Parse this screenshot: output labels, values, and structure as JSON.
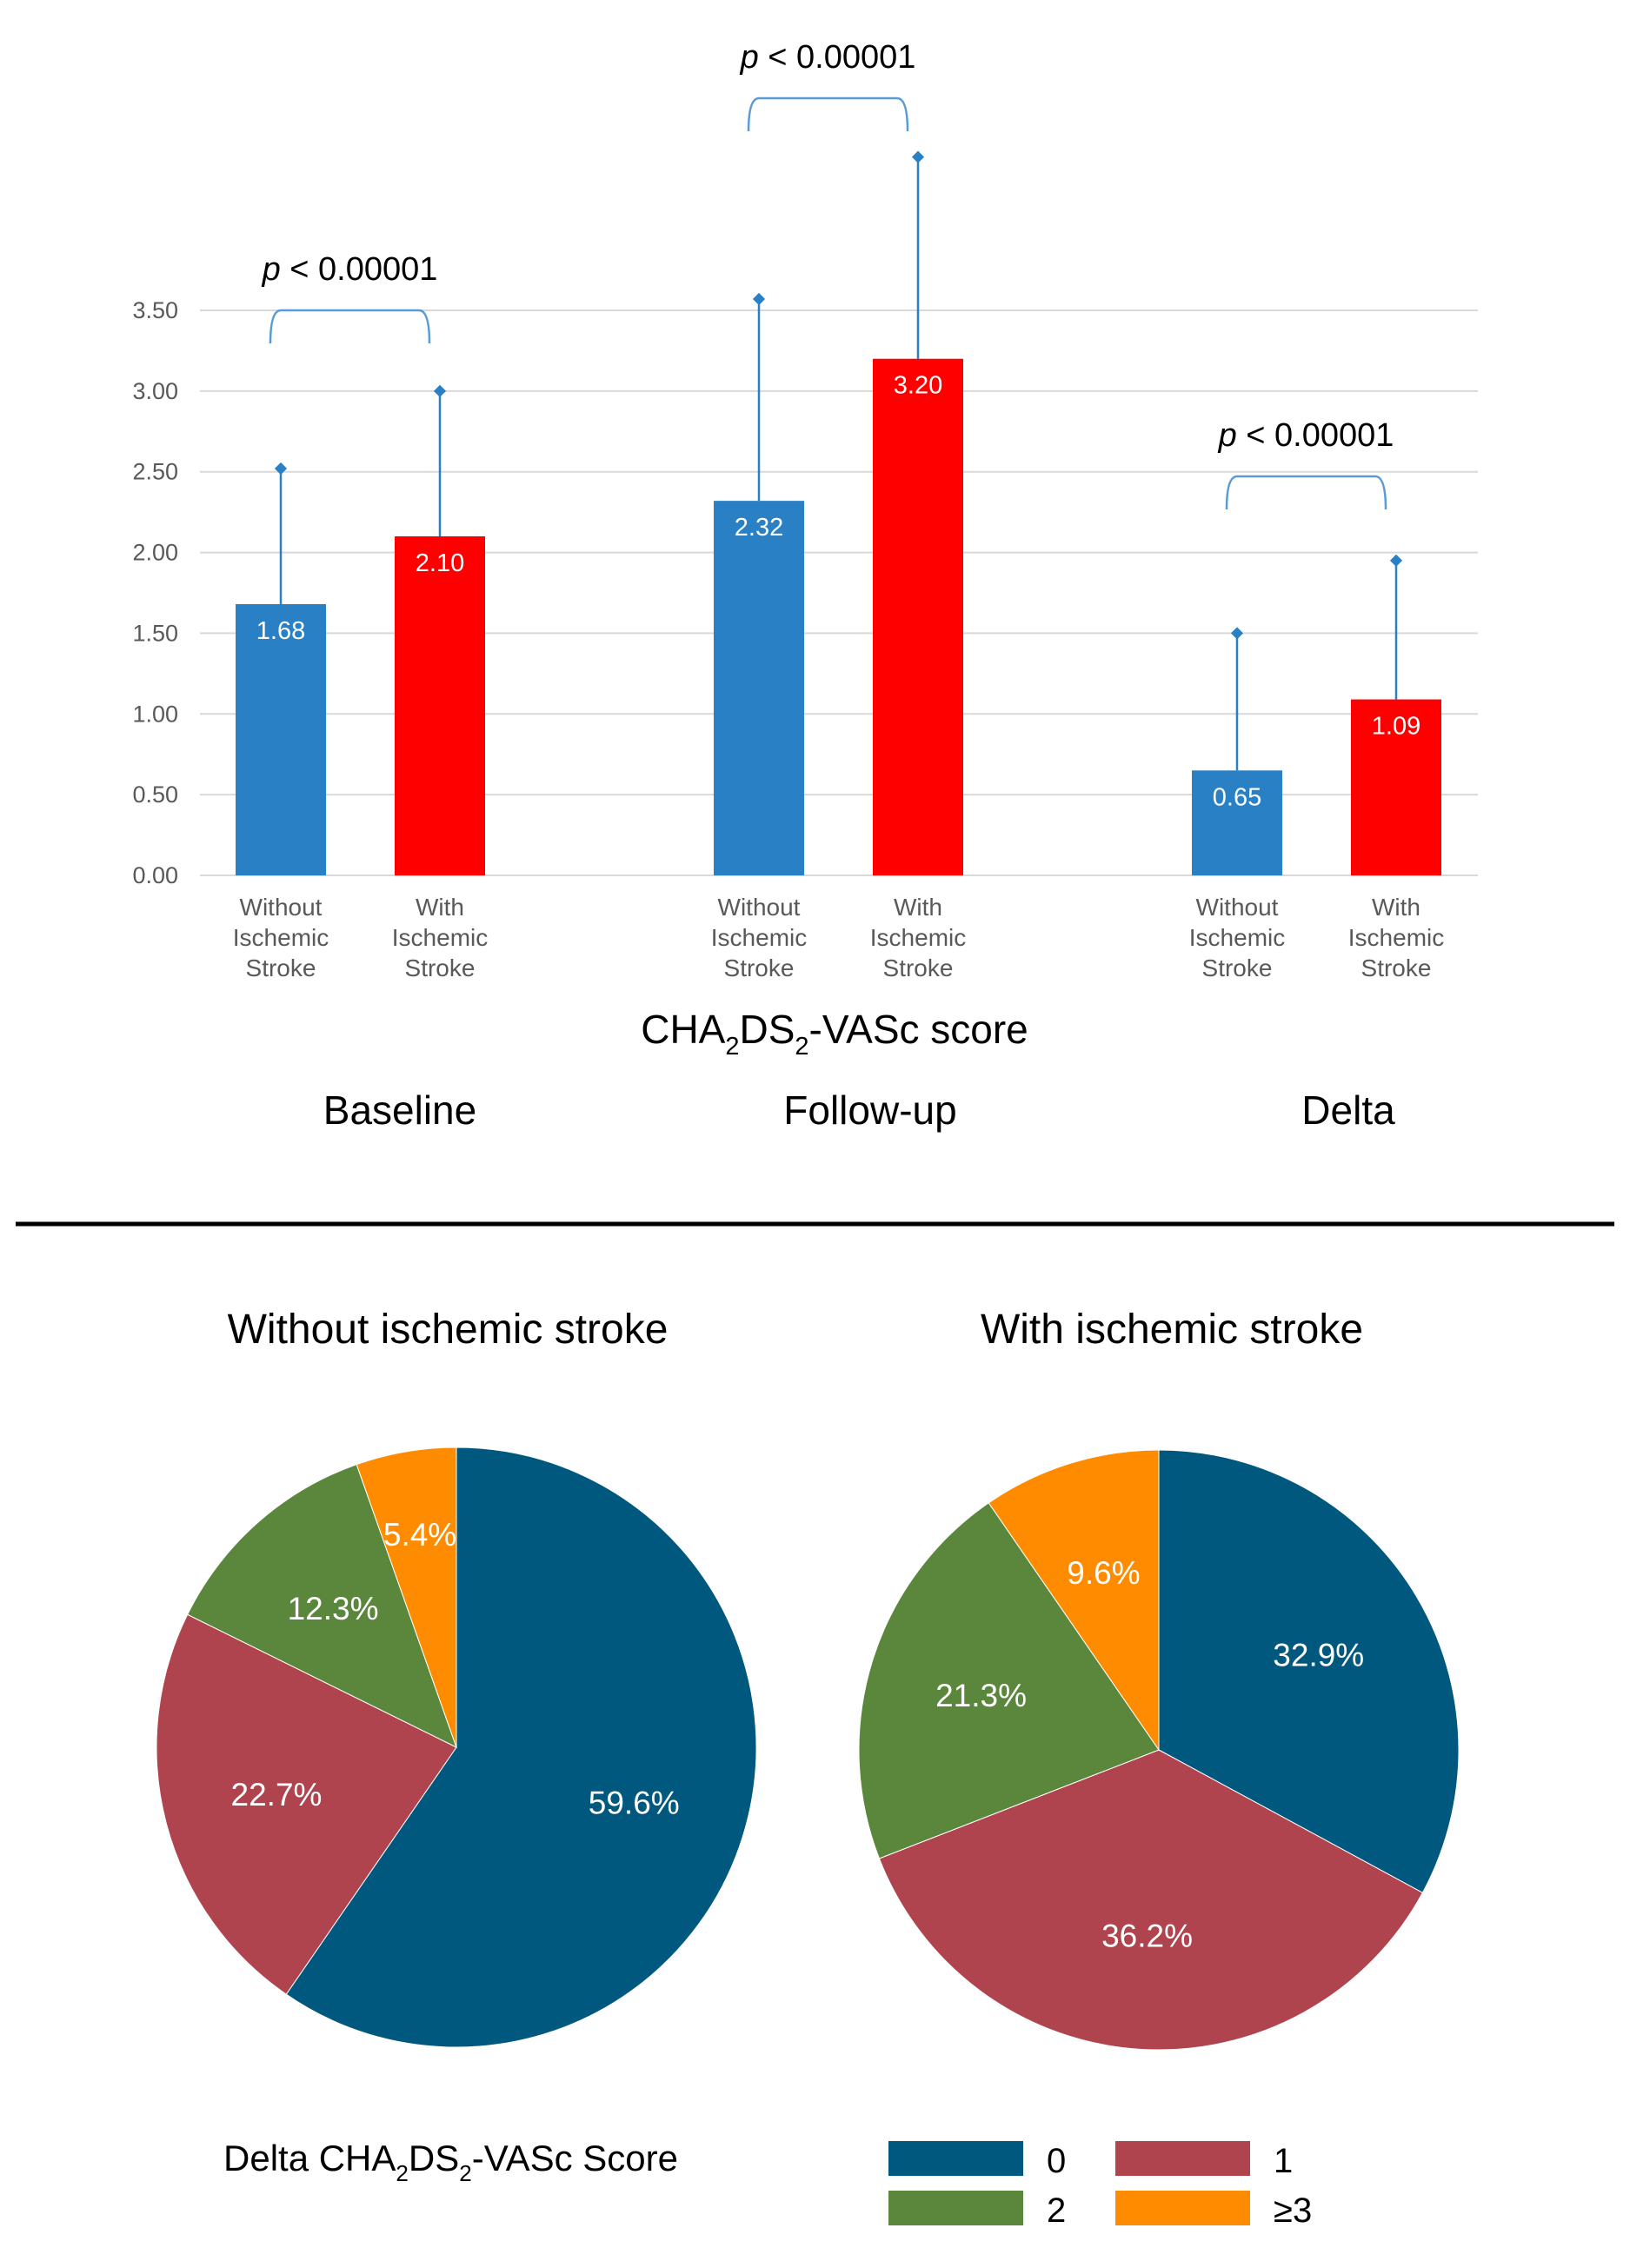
{
  "colors": {
    "blue_bar": "#2a80c4",
    "red_bar": "#ff0000",
    "grid": "#d9d9d9",
    "tick_text": "#595959",
    "bracket": "#5a9bd5",
    "errbar": "#2a80c4",
    "pie_0": "#00587e",
    "pie_1": "#b0444e",
    "pie_2": "#5a873c",
    "pie_3": "#ff8c00",
    "divider": "#000000"
  },
  "chart_data": [
    {
      "type": "bar",
      "title": "",
      "xlabel": {
        "pre": "CHA",
        "sub1": "2",
        "mid": "DS",
        "sub2": "2",
        "post": "-VASc score"
      },
      "ylabel": "",
      "ylim": [
        0,
        3.5
      ],
      "yticks": [
        "0.00",
        "0.50",
        "1.00",
        "1.50",
        "2.00",
        "2.50",
        "3.00",
        "3.50"
      ],
      "groups": [
        {
          "name": "Baseline",
          "pvalue": {
            "p": "p",
            "rest": " < 0.00001"
          },
          "bars": [
            {
              "label": [
                "Without",
                "Ischemic",
                "Stroke"
              ],
              "value": 1.68,
              "value_label": "1.68",
              "error_top": 2.52,
              "color_key": "blue_bar"
            },
            {
              "label": [
                "With",
                "Ischemic",
                "Stroke"
              ],
              "value": 2.1,
              "value_label": "2.10",
              "error_top": 3.0,
              "color_key": "red_bar"
            }
          ]
        },
        {
          "name": "Follow-up",
          "pvalue": {
            "p": "p",
            "rest": " < 0.00001"
          },
          "bars": [
            {
              "label": [
                "Without",
                "Ischemic",
                "Stroke"
              ],
              "value": 2.32,
              "value_label": "2.32",
              "error_top": 3.57,
              "color_key": "blue_bar"
            },
            {
              "label": [
                "With",
                "Ischemic",
                "Stroke"
              ],
              "value": 3.2,
              "value_label": "3.20",
              "error_top": 4.45,
              "color_key": "red_bar"
            }
          ]
        },
        {
          "name": "Delta",
          "pvalue": {
            "p": "p",
            "rest": " < 0.00001"
          },
          "bars": [
            {
              "label": [
                "Without",
                "Ischemic",
                "Stroke"
              ],
              "value": 0.65,
              "value_label": "0.65",
              "error_top": 1.5,
              "color_key": "blue_bar"
            },
            {
              "label": [
                "With",
                "Ischemic",
                "Stroke"
              ],
              "value": 1.09,
              "value_label": "1.09",
              "error_top": 1.95,
              "color_key": "red_bar"
            }
          ]
        }
      ]
    },
    {
      "type": "pie",
      "title": "Without ischemic stroke",
      "slices": [
        {
          "category": "0",
          "value": 59.6,
          "label": "59.6%",
          "color_key": "pie_0"
        },
        {
          "category": "1",
          "value": 22.7,
          "label": "22.7%",
          "color_key": "pie_1"
        },
        {
          "category": "2",
          "value": 12.3,
          "label": "12.3%",
          "color_key": "pie_2"
        },
        {
          "category": "≥3",
          "value": 5.4,
          "label": "5.4%",
          "color_key": "pie_3"
        }
      ]
    },
    {
      "type": "pie",
      "title": "With ischemic stroke",
      "slices": [
        {
          "category": "0",
          "value": 32.9,
          "label": "32.9%",
          "color_key": "pie_0"
        },
        {
          "category": "1",
          "value": 36.2,
          "label": "36.2%",
          "color_key": "pie_1"
        },
        {
          "category": "2",
          "value": 21.3,
          "label": "21.3%",
          "color_key": "pie_2"
        },
        {
          "category": "≥3",
          "value": 9.6,
          "label": "9.6%",
          "color_key": "pie_3"
        }
      ]
    }
  ],
  "legend": {
    "title": {
      "pre": "Delta CHA",
      "sub1": "2",
      "mid": "DS",
      "sub2": "2",
      "post": "-VASc Score"
    },
    "items": [
      {
        "label": "0",
        "color_key": "pie_0"
      },
      {
        "label": "1",
        "color_key": "pie_1"
      },
      {
        "label": "2",
        "color_key": "pie_2"
      },
      {
        "label": "≥3",
        "color_key": "pie_3"
      }
    ]
  }
}
